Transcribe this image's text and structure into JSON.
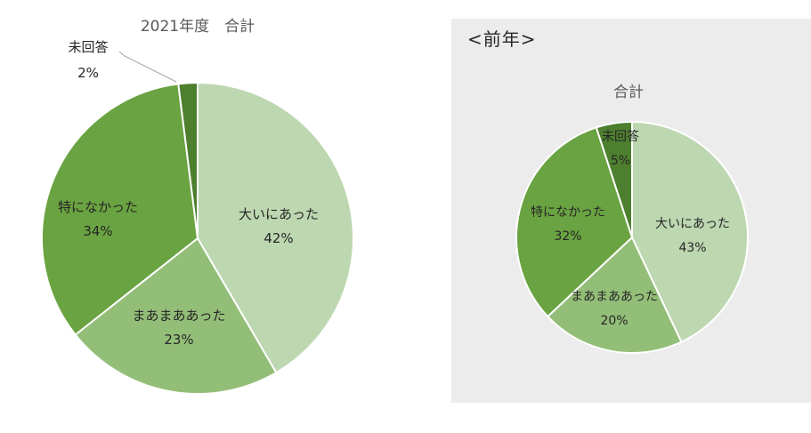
{
  "previous_heading": "<前年>",
  "chart_data": [
    {
      "type": "pie",
      "title": "2021年度　合計",
      "categories": [
        "大いにあった",
        "まあまああった",
        "特になかった",
        "未回答"
      ],
      "values": [
        42,
        23,
        34,
        2
      ],
      "value_labels": [
        "42%",
        "23%",
        "34%",
        "2%"
      ],
      "unit": "%",
      "colors": [
        "#bdd7b0",
        "#93be78",
        "#6aa341",
        "#4d7f2e"
      ],
      "start_angle_deg": 0,
      "direction": "clockwise"
    },
    {
      "type": "pie",
      "title": "合計",
      "categories": [
        "大いにあった",
        "まあまああった",
        "特になかった",
        "未回答"
      ],
      "values": [
        43,
        20,
        32,
        5
      ],
      "value_labels": [
        "43%",
        "20%",
        "32%",
        "5%"
      ],
      "unit": "%",
      "colors": [
        "#bdd7b0",
        "#93be78",
        "#6aa341",
        "#4d7f2e"
      ],
      "start_angle_deg": 0,
      "direction": "clockwise"
    }
  ]
}
